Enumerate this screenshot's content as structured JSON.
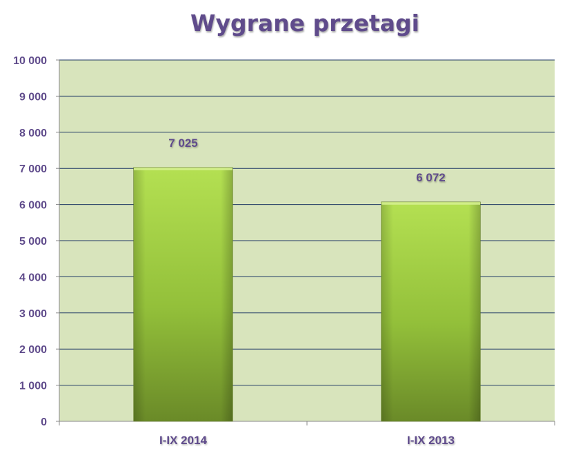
{
  "chart_data": {
    "type": "bar",
    "title": "Wygrane przetagi",
    "categories": [
      "I-IX 2014",
      "I-IX 2013"
    ],
    "values": [
      7025,
      6072
    ],
    "data_labels": [
      "7 025",
      "6 072"
    ],
    "ylim": [
      0,
      10000
    ],
    "yticks": [
      0,
      1000,
      2000,
      3000,
      4000,
      5000,
      6000,
      7000,
      8000,
      9000,
      10000
    ],
    "ytick_labels": [
      "0",
      "1 000",
      "2 000",
      "3 000",
      "4 000",
      "5 000",
      "6 000",
      "7 000",
      "8 000",
      "9 000",
      "10 000"
    ],
    "xlabel": "",
    "ylabel": "",
    "grid": true,
    "legend": "none",
    "colors": {
      "plot_background": "#d8e4bc",
      "gridline": "#1f3864",
      "bar_light": "#a9d64a",
      "bar_dark": "#6f8f2a",
      "text": "#5f4b8b"
    }
  }
}
